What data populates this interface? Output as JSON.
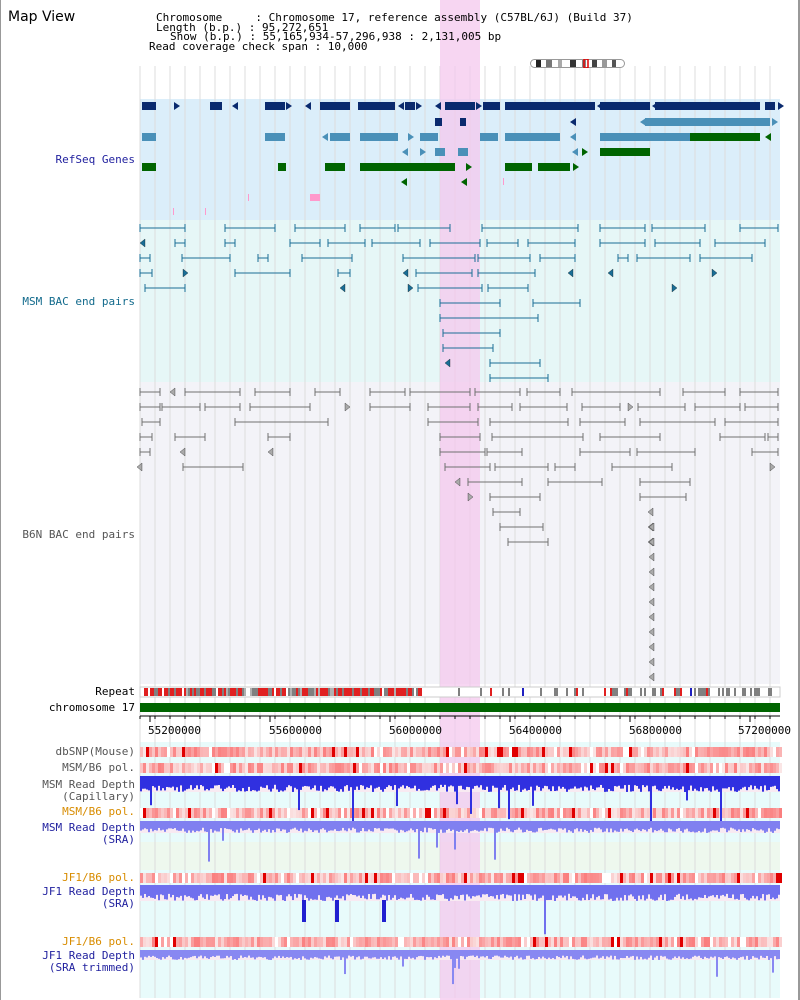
{
  "view": {
    "title": "Map View"
  },
  "header": {
    "line1": "Chromosome     : Chromosome 17, reference assembly (C57BL/6J) (Build 37)",
    "line2": "Length (b.p.) : 95,272,651",
    "line3": "Show (b.p.) : 55,165,934-57,296,938 : 2,131,005 bp",
    "line4": "Read coverage check span : 10,000"
  },
  "tracks": {
    "refseq": "RefSeq Genes",
    "msm_bac": "MSM BAC end pairs",
    "b6n_bac": "B6N BAC end pairs",
    "repeat": "Repeat",
    "chromosome": "chromosome 17",
    "dbsnp": "dbSNP(Mouse)",
    "msm_b6_pol_1": "MSM/B6 pol.",
    "msm_read_cap_1": "MSM Read Depth",
    "msm_read_cap_2": "(Capillary)",
    "msm_b6_pol_2": "MSM/B6 pol.",
    "msm_read_sra_1": "MSM Read Depth",
    "msm_read_sra_2": "(SRA)",
    "jf1_b6_pol_1": "JF1/B6 pol.",
    "jf1_read_sra_1": "JF1 Read Depth",
    "jf1_read_sra_2": "(SRA)",
    "jf1_b6_pol_2": "JF1/B6 pol.",
    "jf1_read_trim_1": "JF1 Read Depth",
    "jf1_read_trim_2": "(SRA trimmed)"
  },
  "axis": {
    "ticks": [
      "55200000",
      "55600000",
      "56000000",
      "56400000",
      "56800000",
      "57200000"
    ]
  },
  "colors": {
    "refseq_navy": "#0a2a6e",
    "refseq_teal": "#4a90b8",
    "refseq_green": "#006400",
    "msm_bac": "#1a6e96",
    "b6n_bac": "#707070",
    "highlight": "#f4c8ee",
    "chromosome_bar": "#006400",
    "label_blue": "#1f1f9e",
    "label_teal": "#126a8c",
    "label_gray": "#555555",
    "label_orange": "#d88c00"
  }
}
